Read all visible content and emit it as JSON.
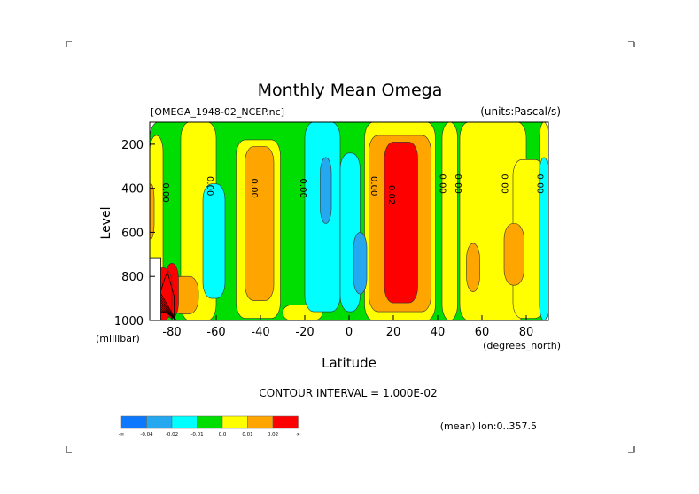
{
  "page": {
    "title": "Monthly Mean Omega",
    "dataset_label": "[OMEGA_1948-02_NCEP.nc]",
    "units_label": "(units:Pascal/s)",
    "y_axis_label": "Level",
    "y_axis_unit": "(millibar)",
    "x_axis_label": "Latitude",
    "x_axis_unit": "(degrees_north)",
    "contour_interval": "CONTOUR INTERVAL = 1.000E-02",
    "mean_note": "(mean) lon:0..357.5"
  },
  "chart_data": {
    "type": "heatmap",
    "title": "Monthly Mean Omega",
    "xlabel": "Latitude",
    "ylabel": "Level",
    "x_unit": "degrees_north",
    "y_unit": "millibar",
    "units": "Pascal/s",
    "xlim": [
      -90,
      90
    ],
    "ylim": [
      1000,
      100
    ],
    "x_ticks": [
      -80,
      -60,
      -40,
      -20,
      0,
      20,
      40,
      60,
      80
    ],
    "x_tick_labels": [
      "-80",
      "-60",
      "-40",
      "-20",
      "0",
      "20",
      "40",
      "60",
      "80"
    ],
    "y_ticks": [
      1000,
      800,
      600,
      400,
      200
    ],
    "y_tick_labels": [
      "1000",
      "800",
      "600",
      "400",
      "200"
    ],
    "contour_interval": 0.01,
    "grid": false,
    "legend_position": "bottom-left",
    "colorbar": [
      {
        "color": "#0b78ff",
        "label": "-∞"
      },
      {
        "color": "#25a8f0",
        "label": "-0.04"
      },
      {
        "color": "#00ffff",
        "label": "-0.02"
      },
      {
        "color": "#00dd00",
        "label": "-0.01"
      },
      {
        "color": "#ffff00",
        "label": "0.0"
      },
      {
        "color": "#ffa500",
        "label": "0.01"
      },
      {
        "color": "#ff0000",
        "label": "0.02"
      },
      {
        "color": "",
        "label": "∞"
      }
    ],
    "contour_labels": [
      {
        "text": "0.00",
        "lat": -84,
        "level": 420
      },
      {
        "text": "0.00",
        "lat": -64,
        "level": 390
      },
      {
        "text": "0.00",
        "lat": -44,
        "level": 400
      },
      {
        "text": "0.00",
        "lat": -22,
        "level": 400
      },
      {
        "text": "0.00",
        "lat": 10,
        "level": 390
      },
      {
        "text": "0.02",
        "lat": 18,
        "level": 430
      },
      {
        "text": "0.00",
        "lat": 41,
        "level": 380
      },
      {
        "text": "0.00",
        "lat": 48,
        "level": 380
      },
      {
        "text": "0.00",
        "lat": 69,
        "level": 380
      },
      {
        "text": "0.00",
        "lat": 85,
        "level": 380
      }
    ],
    "regions": [
      {
        "category": 3,
        "lat": -90,
        "level": 100,
        "w_deg": 180,
        "h_level": 900
      },
      {
        "category": 4,
        "lat": -90,
        "level": 160,
        "w_deg": 6,
        "h_level": 840
      },
      {
        "category": 4,
        "lat": -76,
        "level": 100,
        "w_deg": 16,
        "h_level": 900
      },
      {
        "category": 4,
        "lat": -51,
        "level": 180,
        "w_deg": 20,
        "h_level": 810
      },
      {
        "category": 4,
        "lat": -30,
        "level": 930,
        "w_deg": 18,
        "h_level": 70
      },
      {
        "category": 4,
        "lat": 7,
        "level": 100,
        "w_deg": 32,
        "h_level": 900
      },
      {
        "category": 4,
        "lat": 42,
        "level": 100,
        "w_deg": 7,
        "h_level": 900
      },
      {
        "category": 4,
        "lat": 50,
        "level": 100,
        "w_deg": 30,
        "h_level": 900
      },
      {
        "category": 4,
        "lat": 74,
        "level": 270,
        "w_deg": 14,
        "h_level": 720
      },
      {
        "category": 4,
        "lat": 86,
        "level": 100,
        "w_deg": 4,
        "h_level": 900
      },
      {
        "category": 5,
        "lat": 9,
        "level": 160,
        "w_deg": 28,
        "h_level": 800
      },
      {
        "category": 5,
        "lat": -47,
        "level": 210,
        "w_deg": 13,
        "h_level": 700
      },
      {
        "category": 5,
        "lat": -80,
        "level": 800,
        "w_deg": 12,
        "h_level": 170
      },
      {
        "category": 5,
        "lat": 70,
        "level": 560,
        "w_deg": 9,
        "h_level": 280
      },
      {
        "category": 5,
        "lat": 53,
        "level": 650,
        "w_deg": 6,
        "h_level": 220
      },
      {
        "category": 5,
        "lat": -91,
        "level": 380,
        "w_deg": 3,
        "h_level": 250
      },
      {
        "category": 6,
        "lat": 16,
        "level": 190,
        "w_deg": 15,
        "h_level": 730
      },
      {
        "category": 6,
        "lat": -83,
        "level": 740,
        "w_deg": 6,
        "h_level": 250
      },
      {
        "category": 6,
        "lat": -88,
        "level": 760,
        "w_deg": 8,
        "h_level": 240
      },
      {
        "category": 2,
        "lat": -20,
        "level": 100,
        "w_deg": 16,
        "h_level": 860
      },
      {
        "category": 2,
        "lat": -4,
        "level": 240,
        "w_deg": 9,
        "h_level": 720
      },
      {
        "category": 2,
        "lat": -66,
        "level": 380,
        "w_deg": 10,
        "h_level": 520
      },
      {
        "category": 2,
        "lat": 86,
        "level": 260,
        "w_deg": 4,
        "h_level": 740
      },
      {
        "category": 1,
        "lat": -13,
        "level": 260,
        "w_deg": 5,
        "h_level": 300
      },
      {
        "category": 1,
        "lat": 2,
        "level": 600,
        "w_deg": 6,
        "h_level": 280
      }
    ]
  }
}
